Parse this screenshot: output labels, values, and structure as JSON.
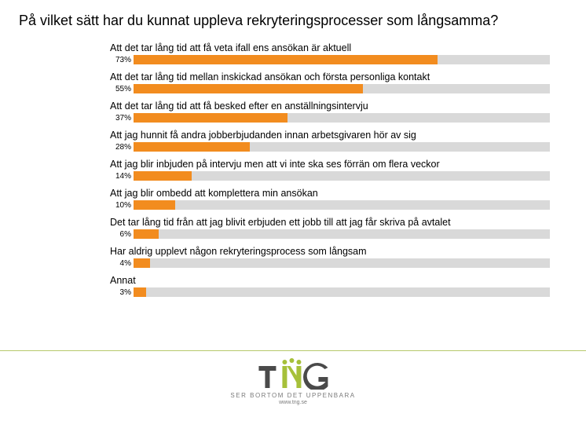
{
  "title": "På vilket sätt har du kunnat uppleva rekryteringsprocesser som långsamma?",
  "chart": {
    "type": "bar",
    "bar_color": "#f28c1f",
    "track_color": "#d9d9d9",
    "background_color": "#ffffff",
    "label_fontsize": 12.5,
    "pct_fontsize": 10,
    "xlim": [
      0,
      100
    ],
    "rows": [
      {
        "label": "Att det tar lång tid att få veta ifall ens ansökan är aktuell",
        "value": 73
      },
      {
        "label": "Att det tar lång tid mellan inskickad ansökan och första personliga kontakt",
        "value": 55
      },
      {
        "label": "Att det tar lång tid att få besked efter en anställningsintervju",
        "value": 37
      },
      {
        "label": "Att jag hunnit få andra jobberbjudanden innan arbetsgivaren hör av sig",
        "value": 28
      },
      {
        "label": "Att jag blir inbjuden på intervju men att vi inte ska ses förrän om flera veckor",
        "value": 14
      },
      {
        "label": "Att jag blir ombedd att komplettera min ansökan",
        "value": 10
      },
      {
        "label": "Det tar lång tid från att jag blivit erbjuden ett jobb till att jag får skriva på avtalet",
        "value": 6
      },
      {
        "label": "Har aldrig upplevt någon rekryteringsprocess som långsam",
        "value": 4
      },
      {
        "label": "Annat",
        "value": 3
      }
    ]
  },
  "footer": {
    "line_color": "#b6c96b",
    "logo_text": "TNG",
    "logo_dark": "#4a4a4a",
    "logo_accent": "#a6c03a",
    "tagline": "SER BORTOM DET UPPENBARA",
    "url": "www.tng.se",
    "tagline_color": "#7b7b7b"
  }
}
